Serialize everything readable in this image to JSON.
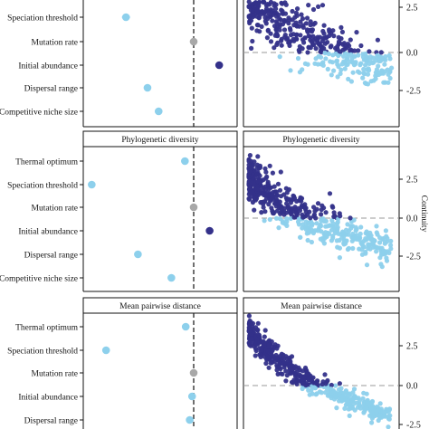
{
  "colors": {
    "positive": "#34318a",
    "negative": "#8dd0ec",
    "neutral": "#a8a8a8",
    "dashed": "#222222",
    "zero_line": "#9a9a9a"
  },
  "right_axis_label": "Continuity",
  "ytick_labels": [
    "2.5",
    "0.0",
    "-2.5"
  ],
  "chart_data": [
    {
      "type": "scatter",
      "title": "",
      "variables": [
        "Speciation threshold",
        "Mutation rate",
        "Initial abundance",
        "Dispersal range",
        "Competitive niche size"
      ],
      "effects": [
        {
          "variable": "Speciation threshold",
          "value": -0.85,
          "error": 0.05,
          "sign": "negative"
        },
        {
          "variable": "Mutation rate",
          "value": 0.0,
          "error": 0.03,
          "sign": "neutral"
        },
        {
          "variable": "Initial abundance",
          "value": 0.32,
          "error": 0.04,
          "sign": "positive"
        },
        {
          "variable": "Dispersal range",
          "value": -0.58,
          "error": 0.04,
          "sign": "negative"
        },
        {
          "variable": "Competitive niche size",
          "value": -0.44,
          "error": 0.03,
          "sign": "negative"
        }
      ],
      "scatter": {
        "yrange": [
          -4.4,
          4.4
        ],
        "y0": 3.4,
        "spread": 0.95,
        "decay": 0.62,
        "seed": 11
      }
    },
    {
      "type": "scatter",
      "title": "Phylogenetic diversity",
      "variables": [
        "Thermal optimum",
        "Speciation threshold",
        "Mutation rate",
        "Initial abundance",
        "Dispersal range",
        "Competitive niche size"
      ],
      "effects": [
        {
          "variable": "Thermal optimum",
          "value": -0.11,
          "error": 0.03,
          "sign": "negative"
        },
        {
          "variable": "Speciation threshold",
          "value": -1.28,
          "error": 0.04,
          "sign": "negative"
        },
        {
          "variable": "Mutation rate",
          "value": 0.0,
          "error": 0.03,
          "sign": "neutral"
        },
        {
          "variable": "Initial abundance",
          "value": 0.2,
          "error": 0.04,
          "sign": "positive"
        },
        {
          "variable": "Dispersal range",
          "value": -0.7,
          "error": 0.04,
          "sign": "negative"
        },
        {
          "variable": "Competitive niche size",
          "value": -0.28,
          "error": 0.03,
          "sign": "negative"
        }
      ],
      "scatter": {
        "yrange": [
          -4.4,
          4.4
        ],
        "y0": 2.6,
        "spread": 0.8,
        "decay": 0.82,
        "seed": 23
      }
    },
    {
      "type": "scatter",
      "title": "Mean pairwise distance",
      "variables": [
        "Thermal optimum",
        "Speciation threshold",
        "Mutation rate",
        "Initial abundance",
        "Dispersal range"
      ],
      "effects": [
        {
          "variable": "Thermal optimum",
          "value": -0.1,
          "error": 0.03,
          "sign": "negative"
        },
        {
          "variable": "Speciation threshold",
          "value": -1.1,
          "error": 0.04,
          "sign": "negative"
        },
        {
          "variable": "Mutation rate",
          "value": 0.0,
          "error": 0.03,
          "sign": "neutral"
        },
        {
          "variable": "Initial abundance",
          "value": -0.02,
          "error": 0.02,
          "sign": "negative"
        },
        {
          "variable": "Dispersal range",
          "value": -0.05,
          "error": 0.02,
          "sign": "negative"
        }
      ],
      "scatter": {
        "yrange": [
          -3.5,
          4.4
        ],
        "y0": 3.5,
        "spread": 0.45,
        "decay": 0.82,
        "seed": 37
      }
    }
  ]
}
